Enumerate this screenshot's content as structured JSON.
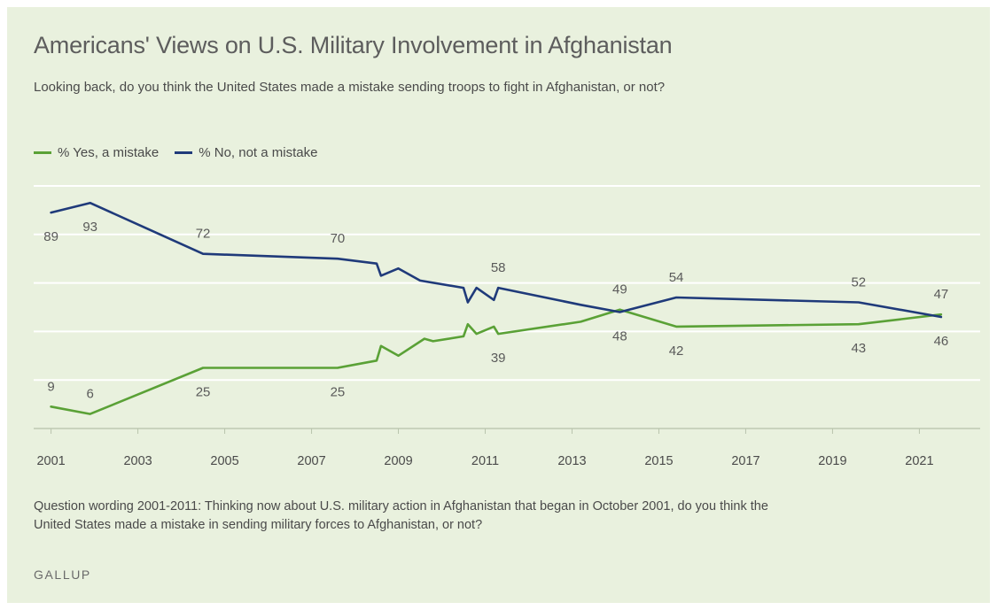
{
  "title": "Americans' Views on U.S. Military Involvement in Afghanistan",
  "subtitle": "Looking back, do you think the United States made a mistake sending troops to fight in Afghanistan, or not?",
  "footnote": "Question wording 2001-2011: Thinking now about U.S. military action in Afghanistan that began in October 2001, do you think the United States made a mistake in sending military forces to Afghanistan, or not?",
  "source": "GALLUP",
  "colors": {
    "background": "#e9f1de",
    "yes": "#5aa136",
    "no": "#1f3a7a",
    "grid": "#ffffff"
  },
  "chart_data": {
    "type": "line",
    "xlim": [
      2000.6,
      2022.4
    ],
    "ylim": [
      0,
      100
    ],
    "x_ticks": [
      "2001",
      "2003",
      "2005",
      "2007",
      "2009",
      "2011",
      "2013",
      "2015",
      "2017",
      "2019",
      "2021"
    ],
    "gridlines_y": [
      0,
      20,
      40,
      60,
      80,
      100
    ],
    "grid": true,
    "legend_position": "top-left",
    "series": [
      {
        "name": "% Yes, a mistake",
        "color": "#5aa136",
        "points": [
          {
            "x": 2001.0,
            "y": 9
          },
          {
            "x": 2001.9,
            "y": 6
          },
          {
            "x": 2004.5,
            "y": 25
          },
          {
            "x": 2007.6,
            "y": 25
          },
          {
            "x": 2008.5,
            "y": 28
          },
          {
            "x": 2008.6,
            "y": 34
          },
          {
            "x": 2009.0,
            "y": 30
          },
          {
            "x": 2009.6,
            "y": 37
          },
          {
            "x": 2009.8,
            "y": 36
          },
          {
            "x": 2010.5,
            "y": 38
          },
          {
            "x": 2010.6,
            "y": 43
          },
          {
            "x": 2010.8,
            "y": 39
          },
          {
            "x": 2011.2,
            "y": 42
          },
          {
            "x": 2011.3,
            "y": 39
          },
          {
            "x": 2013.2,
            "y": 44
          },
          {
            "x": 2014.1,
            "y": 49
          },
          {
            "x": 2015.4,
            "y": 42
          },
          {
            "x": 2019.6,
            "y": 43
          },
          {
            "x": 2021.5,
            "y": 47
          }
        ],
        "labels": [
          {
            "x": 2001.0,
            "text": "9",
            "pos": "above"
          },
          {
            "x": 2001.9,
            "text": "6",
            "pos": "above"
          },
          {
            "x": 2004.5,
            "text": "25",
            "pos": "below"
          },
          {
            "x": 2007.6,
            "text": "25",
            "pos": "below"
          },
          {
            "x": 2011.3,
            "text": "39",
            "pos": "below"
          },
          {
            "x": 2014.1,
            "text": "49",
            "pos": "above"
          },
          {
            "x": 2015.4,
            "text": "42",
            "pos": "below"
          },
          {
            "x": 2019.6,
            "text": "43",
            "pos": "below"
          },
          {
            "x": 2021.5,
            "text": "47",
            "pos": "above"
          }
        ]
      },
      {
        "name": "% No, not a mistake",
        "color": "#1f3a7a",
        "points": [
          {
            "x": 2001.0,
            "y": 89
          },
          {
            "x": 2001.9,
            "y": 93
          },
          {
            "x": 2004.5,
            "y": 72
          },
          {
            "x": 2007.6,
            "y": 70
          },
          {
            "x": 2008.5,
            "y": 68
          },
          {
            "x": 2008.6,
            "y": 63
          },
          {
            "x": 2009.0,
            "y": 66
          },
          {
            "x": 2009.5,
            "y": 61
          },
          {
            "x": 2010.5,
            "y": 58
          },
          {
            "x": 2010.6,
            "y": 52
          },
          {
            "x": 2010.8,
            "y": 58
          },
          {
            "x": 2011.2,
            "y": 53
          },
          {
            "x": 2011.3,
            "y": 58
          },
          {
            "x": 2013.2,
            "y": 51
          },
          {
            "x": 2014.1,
            "y": 48
          },
          {
            "x": 2015.4,
            "y": 54
          },
          {
            "x": 2019.6,
            "y": 52
          },
          {
            "x": 2021.5,
            "y": 46
          }
        ],
        "labels": [
          {
            "x": 2001.0,
            "text": "89",
            "pos": "below"
          },
          {
            "x": 2001.9,
            "text": "93",
            "pos": "below"
          },
          {
            "x": 2004.5,
            "text": "72",
            "pos": "above"
          },
          {
            "x": 2007.6,
            "text": "70",
            "pos": "above"
          },
          {
            "x": 2011.3,
            "text": "58",
            "pos": "above"
          },
          {
            "x": 2014.1,
            "text": "48",
            "pos": "below"
          },
          {
            "x": 2015.4,
            "text": "54",
            "pos": "above"
          },
          {
            "x": 2019.6,
            "text": "52",
            "pos": "above"
          },
          {
            "x": 2021.5,
            "text": "46",
            "pos": "below"
          }
        ]
      }
    ]
  }
}
